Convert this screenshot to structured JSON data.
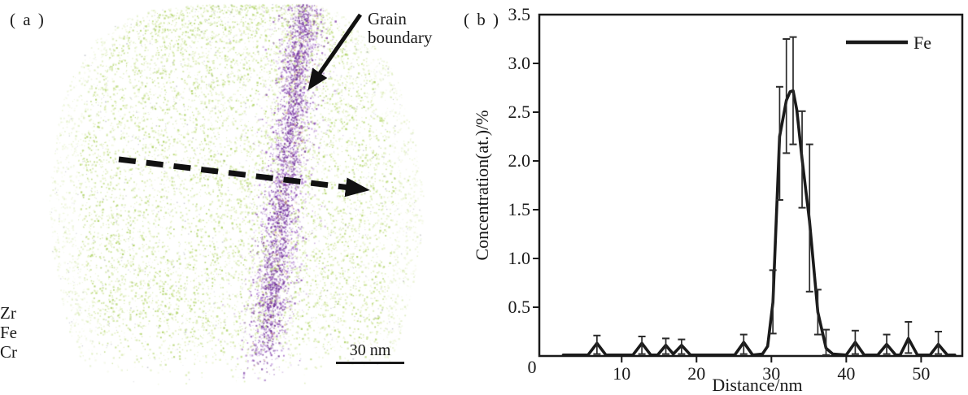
{
  "figure": {
    "panel_a": {
      "label": "( a )",
      "grain_boundary": {
        "line1": "Grain",
        "line2": "boundary"
      },
      "element_labels": [
        "Zr",
        "Fe",
        "Cr"
      ],
      "scale_bar_label": "30 nm",
      "colors": {
        "matrix_greens": [
          "#cde49a",
          "#b9d973",
          "#a6cd55",
          "#dcebae"
        ],
        "boundary_purples": [
          "#9a5bc0",
          "#8747ae",
          "#a76fd0",
          "#7b3da2"
        ],
        "boundary_core": "#6f3198",
        "boundary_speck_orange": "#d8a05a",
        "matrix_gray": "#8d93a0",
        "annotation_ink": "#111111"
      }
    },
    "panel_b": {
      "label": "( b )",
      "legend_label": "Fe",
      "ink_color": "#1a1a1a",
      "error_bar_color": "#2b2b2b"
    }
  },
  "chart_data": {
    "type": "line",
    "title": "",
    "xlabel": "Distance/nm",
    "ylabel": "Concentration(at.)/%",
    "xlim": [
      -1,
      55.5
    ],
    "ylim": [
      0,
      3.5
    ],
    "xticks": [
      0,
      10,
      20,
      30,
      40,
      50
    ],
    "yticks": [
      0,
      0.5,
      1.0,
      1.5,
      2.0,
      2.5,
      3.0,
      3.5
    ],
    "grid": false,
    "legend_position": "top-right",
    "series": [
      {
        "name": "Fe",
        "points": [
          {
            "x": 2.2,
            "y": 0.01
          },
          {
            "x": 5.5,
            "y": 0.01
          },
          {
            "x": 6.7,
            "y": 0.13,
            "lo": 0.02,
            "hi": 0.21
          },
          {
            "x": 7.9,
            "y": 0.01
          },
          {
            "x": 11.5,
            "y": 0.01
          },
          {
            "x": 12.7,
            "y": 0.13,
            "lo": 0.02,
            "hi": 0.2
          },
          {
            "x": 13.9,
            "y": 0.01
          },
          {
            "x": 14.8,
            "y": 0.01
          },
          {
            "x": 15.9,
            "y": 0.11,
            "lo": 0.02,
            "hi": 0.18
          },
          {
            "x": 16.9,
            "y": 0.02
          },
          {
            "x": 18.0,
            "y": 0.11,
            "lo": 0.02,
            "hi": 0.17
          },
          {
            "x": 19.2,
            "y": 0.01
          },
          {
            "x": 25.1,
            "y": 0.01
          },
          {
            "x": 26.3,
            "y": 0.14,
            "lo": 0.02,
            "hi": 0.22
          },
          {
            "x": 27.5,
            "y": 0.01
          },
          {
            "x": 28.8,
            "y": 0.02
          },
          {
            "x": 29.5,
            "y": 0.1
          },
          {
            "x": 30.2,
            "y": 0.55,
            "lo": 0.23,
            "hi": 0.88
          },
          {
            "x": 31.1,
            "y": 2.25,
            "lo": 1.6,
            "hi": 2.76
          },
          {
            "x": 32.0,
            "y": 2.62,
            "lo": 2.08,
            "hi": 3.25
          },
          {
            "x": 32.5,
            "y": 2.71
          },
          {
            "x": 32.9,
            "y": 2.72,
            "lo": 2.17,
            "hi": 3.27
          },
          {
            "x": 33.4,
            "y": 2.52
          },
          {
            "x": 34.1,
            "y": 2.02,
            "lo": 1.52,
            "hi": 2.51
          },
          {
            "x": 35.1,
            "y": 1.38,
            "lo": 0.66,
            "hi": 2.17
          },
          {
            "x": 36.2,
            "y": 0.45,
            "lo": 0.22,
            "hi": 0.68
          },
          {
            "x": 37.3,
            "y": 0.08,
            "lo": 0.01,
            "hi": 0.27
          },
          {
            "x": 38.2,
            "y": 0.02
          },
          {
            "x": 40.0,
            "y": 0.01
          },
          {
            "x": 41.2,
            "y": 0.14,
            "lo": 0.02,
            "hi": 0.26
          },
          {
            "x": 42.4,
            "y": 0.01
          },
          {
            "x": 44.2,
            "y": 0.01
          },
          {
            "x": 45.4,
            "y": 0.12,
            "lo": 0.02,
            "hi": 0.22
          },
          {
            "x": 46.6,
            "y": 0.01
          },
          {
            "x": 47.2,
            "y": 0.01
          },
          {
            "x": 48.3,
            "y": 0.18,
            "lo": 0.03,
            "hi": 0.35
          },
          {
            "x": 49.5,
            "y": 0.01
          },
          {
            "x": 51.2,
            "y": 0.01
          },
          {
            "x": 52.3,
            "y": 0.12,
            "lo": 0.02,
            "hi": 0.25
          },
          {
            "x": 53.5,
            "y": 0.01
          },
          {
            "x": 54.5,
            "y": 0.01
          }
        ]
      }
    ]
  }
}
